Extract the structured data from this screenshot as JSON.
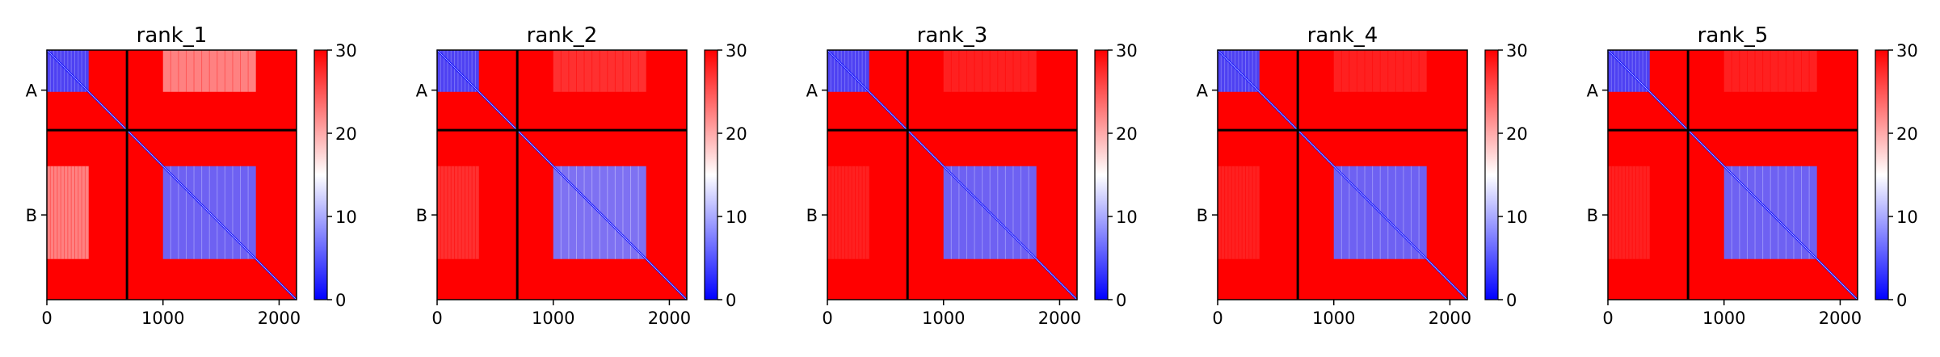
{
  "chart_data": [
    {
      "type": "heatmap",
      "title": "rank_1",
      "x_ticks": [
        0,
        1000,
        2000
      ],
      "xlim": [
        0,
        2150
      ],
      "y_ticks": [
        "A",
        "B"
      ],
      "chain_boundary": 690,
      "colorbar": {
        "min": 0,
        "max": 30,
        "ticks": [
          0,
          10,
          20,
          30
        ],
        "low_color": "#0000ff",
        "mid_color": "#ffffff",
        "high_color": "#ff0000"
      },
      "blocks": [
        {
          "x": [
            0,
            360
          ],
          "y": [
            0,
            360
          ],
          "level": 4
        },
        {
          "x": [
            1000,
            1800
          ],
          "y": [
            1000,
            1800
          ],
          "level": 6
        },
        {
          "x": [
            1000,
            1800
          ],
          "y": [
            0,
            360
          ],
          "level": 22
        },
        {
          "x": [
            0,
            360
          ],
          "y": [
            1000,
            1800
          ],
          "level": 22
        }
      ]
    },
    {
      "type": "heatmap",
      "title": "rank_2",
      "x_ticks": [
        0,
        1000,
        2000
      ],
      "xlim": [
        0,
        2150
      ],
      "y_ticks": [
        "A",
        "B"
      ],
      "chain_boundary": 690,
      "colorbar": {
        "min": 0,
        "max": 30,
        "ticks": [
          0,
          10,
          20,
          30
        ],
        "low_color": "#0000ff",
        "mid_color": "#ffffff",
        "high_color": "#ff0000"
      },
      "blocks": [
        {
          "x": [
            0,
            360
          ],
          "y": [
            0,
            360
          ],
          "level": 4
        },
        {
          "x": [
            1000,
            1800
          ],
          "y": [
            1000,
            1800
          ],
          "level": 7
        },
        {
          "x": [
            1000,
            1800
          ],
          "y": [
            0,
            360
          ],
          "level": 27
        },
        {
          "x": [
            0,
            360
          ],
          "y": [
            1000,
            1800
          ],
          "level": 27
        }
      ]
    },
    {
      "type": "heatmap",
      "title": "rank_3",
      "x_ticks": [
        0,
        1000,
        2000
      ],
      "xlim": [
        0,
        2150
      ],
      "y_ticks": [
        "A",
        "B"
      ],
      "chain_boundary": 690,
      "colorbar": {
        "min": 0,
        "max": 30,
        "ticks": [
          0,
          10,
          20,
          30
        ],
        "low_color": "#0000ff",
        "mid_color": "#ffffff",
        "high_color": "#ff0000"
      },
      "blocks": [
        {
          "x": [
            0,
            360
          ],
          "y": [
            0,
            360
          ],
          "level": 4
        },
        {
          "x": [
            1000,
            1800
          ],
          "y": [
            1000,
            1800
          ],
          "level": 6
        },
        {
          "x": [
            1000,
            1800
          ],
          "y": [
            0,
            360
          ],
          "level": 28
        },
        {
          "x": [
            0,
            360
          ],
          "y": [
            1000,
            1800
          ],
          "level": 28
        }
      ]
    },
    {
      "type": "heatmap",
      "title": "rank_4",
      "x_ticks": [
        0,
        1000,
        2000
      ],
      "xlim": [
        0,
        2150
      ],
      "y_ticks": [
        "A",
        "B"
      ],
      "chain_boundary": 690,
      "colorbar": {
        "min": 0,
        "max": 30,
        "ticks": [
          0,
          10,
          20,
          30
        ],
        "low_color": "#0000ff",
        "mid_color": "#ffffff",
        "high_color": "#ff0000"
      },
      "blocks": [
        {
          "x": [
            0,
            360
          ],
          "y": [
            0,
            360
          ],
          "level": 4
        },
        {
          "x": [
            1000,
            1800
          ],
          "y": [
            1000,
            1800
          ],
          "level": 6
        },
        {
          "x": [
            1000,
            1800
          ],
          "y": [
            0,
            360
          ],
          "level": 28
        },
        {
          "x": [
            0,
            360
          ],
          "y": [
            1000,
            1800
          ],
          "level": 28
        }
      ]
    },
    {
      "type": "heatmap",
      "title": "rank_5",
      "x_ticks": [
        0,
        1000,
        2000
      ],
      "xlim": [
        0,
        2150
      ],
      "y_ticks": [
        "A",
        "B"
      ],
      "chain_boundary": 690,
      "colorbar": {
        "min": 0,
        "max": 30,
        "ticks": [
          0,
          10,
          20,
          30
        ],
        "low_color": "#0000ff",
        "mid_color": "#ffffff",
        "high_color": "#ff0000"
      },
      "blocks": [
        {
          "x": [
            0,
            360
          ],
          "y": [
            0,
            360
          ],
          "level": 4
        },
        {
          "x": [
            1000,
            1800
          ],
          "y": [
            1000,
            1800
          ],
          "level": 6
        },
        {
          "x": [
            1000,
            1800
          ],
          "y": [
            0,
            360
          ],
          "level": 28
        },
        {
          "x": [
            0,
            360
          ],
          "y": [
            1000,
            1800
          ],
          "level": 28
        }
      ]
    }
  ]
}
